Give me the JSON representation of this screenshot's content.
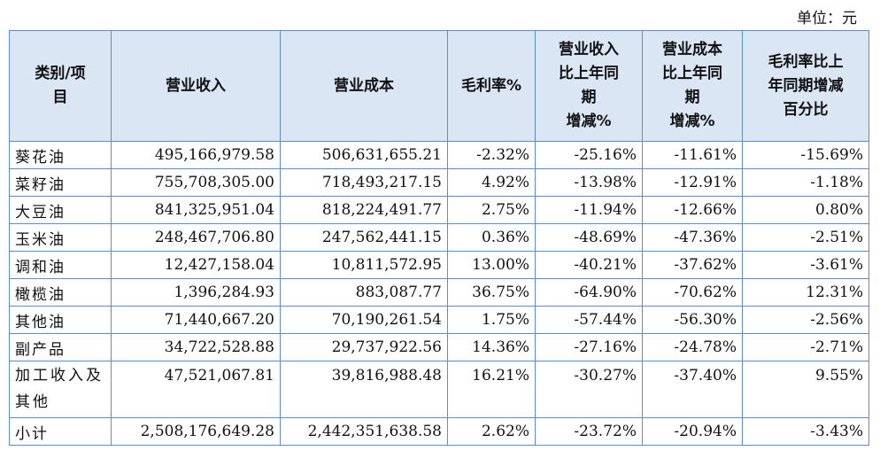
{
  "unit_label": "单位：元",
  "headers": [
    [
      "类别/项",
      "目"
    ],
    [
      "营业收入"
    ],
    [
      "营业成本"
    ],
    [
      "毛利率%"
    ],
    [
      "营业收入",
      "比上年同",
      "期",
      "增减%"
    ],
    [
      "营业成本",
      "比上年同",
      "期",
      "增减%"
    ],
    [
      "毛利率比上",
      "年同期增减",
      "百分比"
    ]
  ],
  "rows": [
    {
      "category": "葵花油",
      "revenue": "495,166,979.58",
      "cost": "506,631,655.21",
      "margin": "-2.32%",
      "rev_change": "-25.16%",
      "cost_change": "-11.61%",
      "margin_change": "-15.69%"
    },
    {
      "category": "菜籽油",
      "revenue": "755,708,305.00",
      "cost": "718,493,217.15",
      "margin": "4.92%",
      "rev_change": "-13.98%",
      "cost_change": "-12.91%",
      "margin_change": "-1.18%"
    },
    {
      "category": "大豆油",
      "revenue": "841,325,951.04",
      "cost": "818,224,491.77",
      "margin": "2.75%",
      "rev_change": "-11.94%",
      "cost_change": "-12.66%",
      "margin_change": "0.80%"
    },
    {
      "category": "玉米油",
      "revenue": "248,467,706.80",
      "cost": "247,562,441.15",
      "margin": "0.36%",
      "rev_change": "-48.69%",
      "cost_change": "-47.36%",
      "margin_change": "-2.51%"
    },
    {
      "category": "调和油",
      "revenue": "12,427,158.04",
      "cost": "10,811,572.95",
      "margin": "13.00%",
      "rev_change": "-40.21%",
      "cost_change": "-37.62%",
      "margin_change": "-3.61%"
    },
    {
      "category": "橄榄油",
      "revenue": "1,396,284.93",
      "cost": "883,087.77",
      "margin": "36.75%",
      "rev_change": "-64.90%",
      "cost_change": "-70.62%",
      "margin_change": "12.31%"
    },
    {
      "category": "其他油",
      "revenue": "71,440,667.20",
      "cost": "70,190,261.54",
      "margin": "1.75%",
      "rev_change": "-57.44%",
      "cost_change": "-56.30%",
      "margin_change": "-2.56%"
    },
    {
      "category": "副产品",
      "revenue": "34,722,528.88",
      "cost": "29,737,922.56",
      "margin": "14.36%",
      "rev_change": "-27.16%",
      "cost_change": "-24.78%",
      "margin_change": "-2.71%"
    },
    {
      "category": "加工收入及其他",
      "revenue": "47,521,067.81",
      "cost": "39,816,988.48",
      "margin": "16.21%",
      "rev_change": "-30.27%",
      "cost_change": "-37.40%",
      "margin_change": "9.55%"
    },
    {
      "category": "小计",
      "revenue": "2,508,176,649.28",
      "cost": "2,442,351,638.58",
      "margin": "2.62%",
      "rev_change": "-23.72%",
      "cost_change": "-20.94%",
      "margin_change": "-3.43%"
    }
  ]
}
